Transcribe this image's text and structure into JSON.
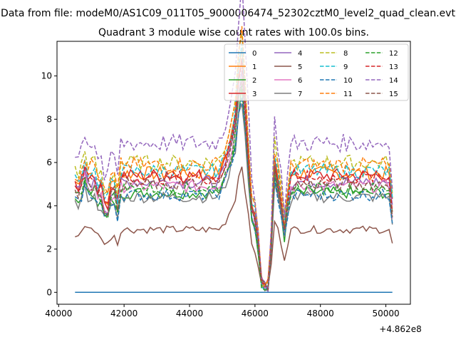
{
  "figure": {
    "suptitle": "Data from file: modeM0/AS1C09_011T05_9000006474_52302cztM0_level2_quad_clean.evt",
    "title": "Quadrant 3 module wise count rates with 100.0s bins.",
    "offset_label": "+4.862e8"
  },
  "chart_data": {
    "type": "line",
    "title": "Quadrant 3 module wise count rates with 100.0s bins.",
    "xlabel": "",
    "ylabel": "",
    "x_offset": 486200000,
    "xlim": [
      39950,
      50750
    ],
    "ylim": [
      -0.55,
      11.6
    ],
    "xticks": [
      40000,
      42000,
      44000,
      46000,
      48000,
      50000
    ],
    "yticks": [
      0,
      2,
      4,
      6,
      8,
      10
    ],
    "grid": false,
    "legend": {
      "placement": "top-right",
      "columns": 4
    },
    "series": [
      {
        "name": "0",
        "color": "#1f77b4",
        "dash": "solid",
        "base": 0.0
      },
      {
        "name": "1",
        "color": "#ff7f0e",
        "dash": "solid",
        "base": 5.5
      },
      {
        "name": "2",
        "color": "#2ca02c",
        "dash": "solid",
        "base": 4.6
      },
      {
        "name": "3",
        "color": "#d62728",
        "dash": "solid",
        "base": 5.4
      },
      {
        "name": "4",
        "color": "#9467bd",
        "dash": "solid",
        "base": 5.1
      },
      {
        "name": "5",
        "color": "#8c564b",
        "dash": "solid",
        "base": 2.9
      },
      {
        "name": "6",
        "color": "#e377c2",
        "dash": "solid",
        "base": 4.9
      },
      {
        "name": "7",
        "color": "#7f7f7f",
        "dash": "solid",
        "base": 4.4
      },
      {
        "name": "8",
        "color": "#bcbd22",
        "dash": "dashed",
        "base": 6.0
      },
      {
        "name": "9",
        "color": "#17becf",
        "dash": "dashed",
        "base": 5.6
      },
      {
        "name": "10",
        "color": "#1f77b4",
        "dash": "dashed",
        "base": 4.5
      },
      {
        "name": "11",
        "color": "#ff7f0e",
        "dash": "dashed",
        "base": 5.9
      },
      {
        "name": "12",
        "color": "#2ca02c",
        "dash": "dashed",
        "base": 4.8
      },
      {
        "name": "13",
        "color": "#d62728",
        "dash": "dashed",
        "base": 5.3
      },
      {
        "name": "14",
        "color": "#9467bd",
        "dash": "dashed",
        "base": 6.9
      },
      {
        "name": "15",
        "color": "#8c564b",
        "dash": "dashed",
        "base": 5.0
      }
    ]
  }
}
